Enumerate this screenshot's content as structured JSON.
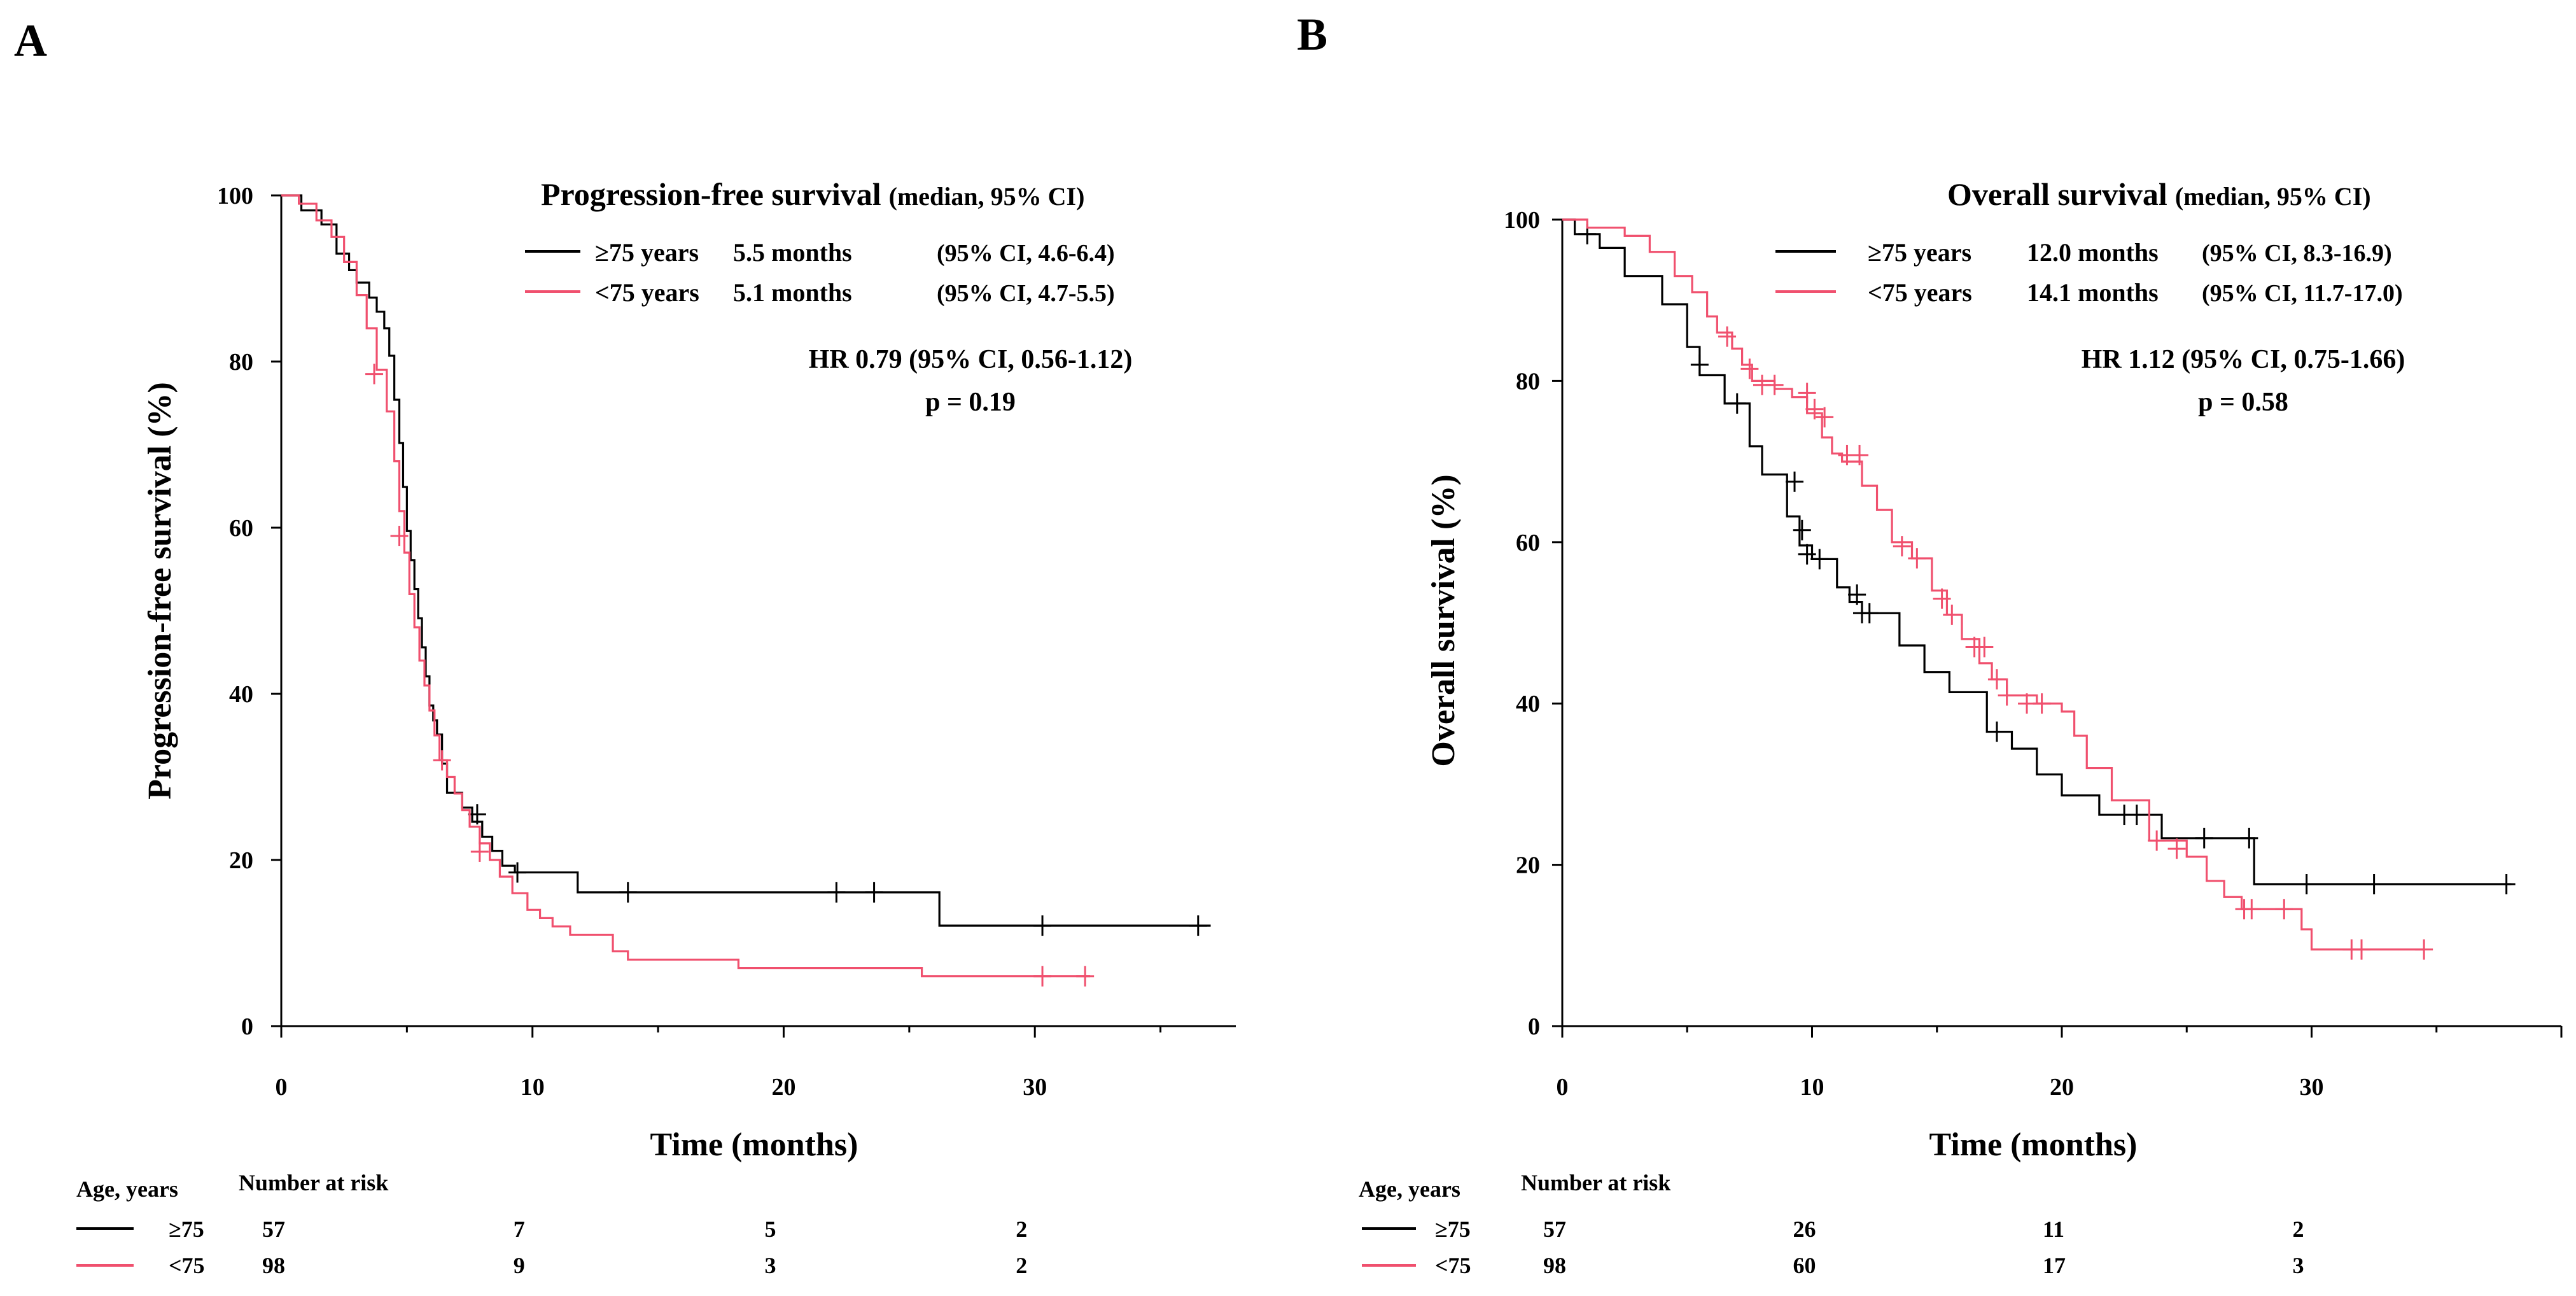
{
  "colors": {
    "ge75": "#000000",
    "lt75": "#f0506e"
  },
  "chart_data": [
    {
      "type": "line",
      "subtype": "kaplan-meier",
      "panel_label": "A",
      "title": "Progression-free survival",
      "title_note": "(median,  95% CI)",
      "xlabel": "Time (months)",
      "ylabel": "Progression-free  survival  (%)",
      "xlim": [
        0,
        38
      ],
      "ylim": [
        0,
        100
      ],
      "xticks": [
        0,
        10,
        20,
        30
      ],
      "yticks": [
        0,
        20,
        40,
        60,
        80,
        100
      ],
      "legend": [
        {
          "group": "≥75 years",
          "median": "5.5 months",
          "ci": "(95% CI, 4.6-6.4)"
        },
        {
          "group": "<75 years",
          "median": "5.1 months",
          "ci": "(95% CI, 4.7-5.5)"
        }
      ],
      "hr": "HR 0.79 (95% CI, 0.56-1.12)",
      "p": "p = 0.19",
      "series": [
        {
          "name": "≥75 years",
          "x": [
            0,
            0.8,
            1.6,
            2.2,
            2.7,
            3.0,
            3.5,
            3.8,
            4.1,
            4.3,
            4.5,
            4.7,
            4.85,
            5.0,
            5.15,
            5.3,
            5.45,
            5.6,
            5.75,
            5.9,
            6.05,
            6.2,
            6.4,
            6.6,
            7.2,
            7.6,
            8.0,
            8.4,
            8.8,
            9.3,
            11.8,
            26.2,
            37
          ],
          "y": [
            100,
            98.2,
            96.5,
            93,
            91,
            89.5,
            87.7,
            86,
            84,
            80.7,
            75.4,
            70.2,
            64.9,
            59.6,
            56.1,
            52.6,
            49.1,
            45.6,
            42.1,
            38.6,
            36.8,
            35.1,
            31.6,
            28.1,
            26.3,
            24.6,
            22.8,
            21.1,
            19.3,
            18.5,
            16.1,
            12.1,
            12.1
          ],
          "censored": [
            [
              7.8,
              25.5
            ],
            [
              9.4,
              18.5
            ],
            [
              13.8,
              16.1
            ],
            [
              22.1,
              16.1
            ],
            [
              23.6,
              16.1
            ],
            [
              30.3,
              12.1
            ],
            [
              36.5,
              12.1
            ]
          ]
        },
        {
          "name": "<75 years",
          "x": [
            0,
            0.7,
            1.4,
            2.0,
            2.5,
            3.0,
            3.4,
            3.8,
            4.2,
            4.5,
            4.7,
            4.9,
            5.1,
            5.3,
            5.5,
            5.7,
            5.9,
            6.1,
            6.3,
            6.6,
            6.9,
            7.2,
            7.5,
            7.9,
            8.3,
            8.7,
            9.2,
            9.8,
            10.3,
            10.8,
            11.5,
            13.2,
            13.8,
            18.2,
            25.5,
            32.2
          ],
          "y": [
            100,
            99,
            97,
            95,
            92,
            88,
            84,
            79,
            74,
            68,
            62,
            57,
            52,
            48,
            44,
            41,
            38,
            35,
            32,
            30,
            28,
            26,
            24,
            22,
            20,
            18,
            16,
            14,
            13,
            12,
            11,
            9,
            8,
            7,
            6,
            6
          ],
          "censored": [
            [
              3.7,
              78.5
            ],
            [
              4.7,
              59
            ],
            [
              6.4,
              32
            ],
            [
              7.9,
              21
            ],
            [
              30.3,
              6
            ],
            [
              32.0,
              6
            ]
          ]
        }
      ],
      "risk_table": {
        "header_group": "Age, years",
        "header_risk": "Number  at risk",
        "rows": [
          {
            "label": "≥75",
            "values": [
              "57",
              "7",
              "5",
              "2"
            ]
          },
          {
            "label": "<75",
            "values": [
              "98",
              "9",
              "3",
              "2"
            ]
          }
        ]
      }
    },
    {
      "type": "line",
      "subtype": "kaplan-meier",
      "panel_label": "B",
      "title": "Overall survival",
      "title_note": "(median,  95% CI)",
      "xlabel": "Time (months)",
      "ylabel": "Overall  survival  (%)",
      "xlim": [
        0,
        40
      ],
      "ylim": [
        0,
        100
      ],
      "xticks": [
        0,
        10,
        20,
        30
      ],
      "yticks": [
        0,
        20,
        40,
        60,
        80,
        100
      ],
      "legend": [
        {
          "group": "≥75 years",
          "median": "12.0 months",
          "ci": "(95% CI, 8.3-16.9)"
        },
        {
          "group": "<75 years",
          "median": "14.1 months",
          "ci": "(95% CI, 11.7-17.0)"
        }
      ],
      "hr": "HR 1.12 (95% CI, 0.75-1.66)",
      "p": "p = 0.58",
      "series": [
        {
          "name": "≥75 years",
          "x": [
            0,
            0.5,
            1.5,
            2.5,
            4.0,
            5.0,
            5.5,
            6.5,
            7.5,
            8.0,
            9.0,
            9.5,
            10.0,
            11.0,
            11.5,
            12.0,
            13.5,
            14.5,
            15.5,
            17.0,
            18.0,
            19.0,
            20.0,
            21.5,
            24.0,
            27.7,
            38
          ],
          "y": [
            100,
            98.2,
            96.5,
            93,
            89.5,
            84.2,
            80.7,
            77.2,
            71.9,
            68.4,
            63.2,
            59.6,
            57.9,
            54.4,
            52.6,
            51.2,
            47.2,
            43.9,
            41.4,
            36.5,
            34.4,
            31.2,
            28.6,
            26.2,
            23.3,
            17.6,
            17.6
          ],
          "censored": [
            [
              1.0,
              98.2
            ],
            [
              5.5,
              82
            ],
            [
              7.0,
              77.2
            ],
            [
              9.3,
              67.5
            ],
            [
              9.6,
              61.5
            ],
            [
              9.8,
              58.5
            ],
            [
              10.3,
              57.9
            ],
            [
              11.8,
              53.5
            ],
            [
              12.0,
              51.2
            ],
            [
              12.3,
              51.2
            ],
            [
              17.4,
              36.5
            ],
            [
              22.5,
              26.2
            ],
            [
              23.0,
              26.2
            ],
            [
              25.7,
              23.3
            ],
            [
              27.5,
              23.3
            ],
            [
              29.8,
              17.6
            ],
            [
              32.5,
              17.6
            ],
            [
              37.8,
              17.6
            ]
          ]
        },
        {
          "name": "<75 years",
          "x": [
            0,
            1.0,
            2.5,
            3.5,
            4.5,
            5.2,
            5.8,
            6.2,
            6.8,
            7.2,
            7.6,
            8.5,
            9.2,
            9.8,
            10.4,
            10.8,
            11.2,
            12.0,
            12.6,
            13.2,
            14.0,
            14.8,
            15.4,
            16.0,
            16.7,
            17.2,
            17.8,
            19.0,
            20.0,
            20.5,
            21.0,
            22.0,
            23.5,
            25.0,
            25.8,
            26.5,
            27.2,
            29.6,
            30.0,
            34.5
          ],
          "y": [
            100,
            99,
            98,
            96,
            93,
            91,
            88,
            86,
            84,
            82,
            80,
            79,
            78,
            76,
            73,
            71,
            70,
            67,
            64,
            60,
            58,
            54,
            51,
            48,
            45,
            43,
            41,
            40,
            39,
            36,
            32,
            28,
            23,
            21,
            18,
            16,
            14.5,
            12,
            9.5,
            9.5
          ],
          "censored": [
            [
              6.6,
              85.5
            ],
            [
              7.5,
              81.5
            ],
            [
              8.0,
              79.5
            ],
            [
              8.5,
              79.5
            ],
            [
              9.8,
              78.5
            ],
            [
              10.1,
              76.5
            ],
            [
              10.5,
              75.5
            ],
            [
              11.4,
              70.8
            ],
            [
              11.9,
              70.8
            ],
            [
              13.6,
              59.5
            ],
            [
              14.2,
              58
            ],
            [
              15.2,
              53
            ],
            [
              15.6,
              51
            ],
            [
              16.5,
              47
            ],
            [
              16.9,
              47
            ],
            [
              17.4,
              43
            ],
            [
              17.8,
              41
            ],
            [
              18.6,
              40
            ],
            [
              19.2,
              40
            ],
            [
              23.8,
              23
            ],
            [
              24.6,
              22
            ],
            [
              27.3,
              14.5
            ],
            [
              27.6,
              14.5
            ],
            [
              28.9,
              14.5
            ],
            [
              31.6,
              9.5
            ],
            [
              32.0,
              9.5
            ],
            [
              34.5,
              9.5
            ]
          ]
        }
      ],
      "risk_table": {
        "header_group": "Age, years",
        "header_risk": "Number  at risk",
        "rows": [
          {
            "label": "≥75",
            "values": [
              "57",
              "26",
              "11",
              "2"
            ]
          },
          {
            "label": "<75",
            "values": [
              "98",
              "60",
              "17",
              "3"
            ]
          }
        ]
      }
    }
  ]
}
